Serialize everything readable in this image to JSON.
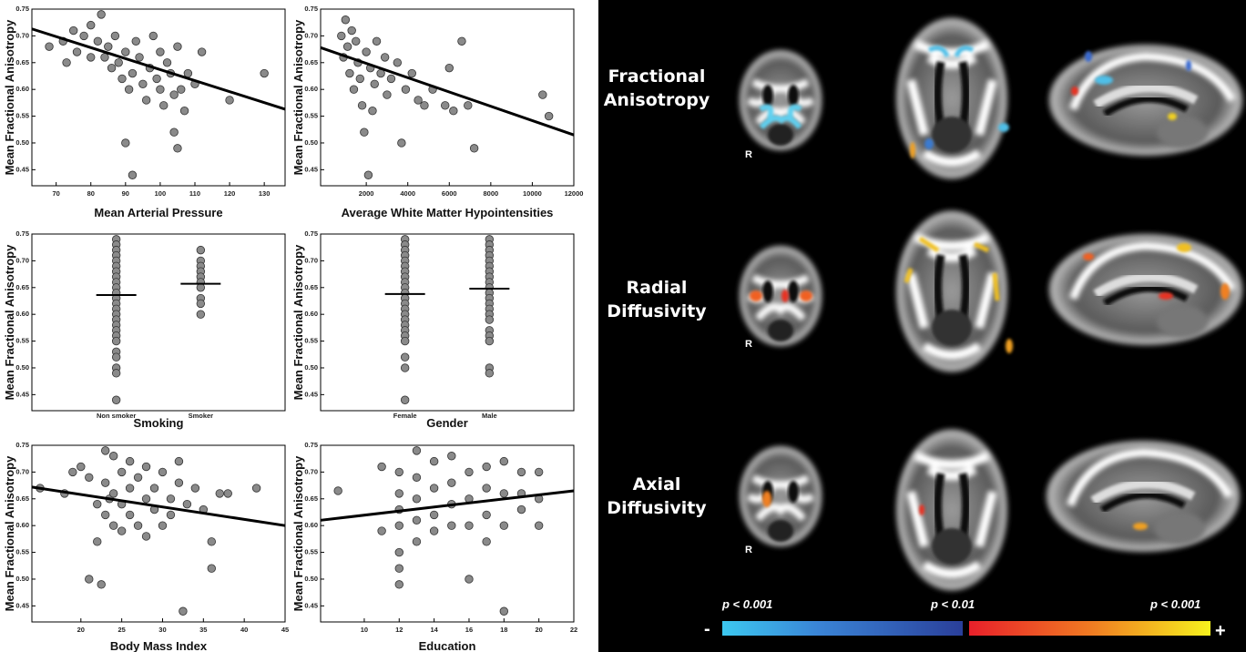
{
  "chart_data": [
    {
      "type": "scatter",
      "xlabel": "Mean Arterial Pressure",
      "ylabel": "Mean Fractional Anisotropy",
      "x": [
        68,
        72,
        73,
        75,
        76,
        78,
        80,
        80,
        82,
        83,
        84,
        85,
        86,
        87,
        88,
        89,
        90,
        90,
        91,
        92,
        92,
        93,
        94,
        95,
        96,
        97,
        98,
        99,
        100,
        100,
        101,
        102,
        103,
        104,
        104,
        105,
        105,
        106,
        107,
        108,
        110,
        112,
        120,
        130
      ],
      "y": [
        0.68,
        0.69,
        0.65,
        0.71,
        0.67,
        0.7,
        0.66,
        0.72,
        0.69,
        0.74,
        0.66,
        0.68,
        0.64,
        0.7,
        0.65,
        0.62,
        0.67,
        0.5,
        0.6,
        0.63,
        0.44,
        0.69,
        0.66,
        0.61,
        0.58,
        0.64,
        0.7,
        0.62,
        0.67,
        0.6,
        0.57,
        0.65,
        0.63,
        0.59,
        0.52,
        0.49,
        0.68,
        0.6,
        0.56,
        0.63,
        0.61,
        0.67,
        0.58,
        0.63
      ],
      "fit": {
        "x": [
          63,
          136
        ],
        "y": [
          0.713,
          0.563
        ]
      },
      "xlim": [
        63,
        136
      ],
      "xticks": [
        70,
        80,
        90,
        100,
        110,
        120,
        130
      ],
      "ylim": [
        0.42,
        0.75
      ],
      "yticks": [
        0.45,
        {
          "value": 0.5,
          "label": "0.50"
        },
        0.55,
        {
          "value": 0.6,
          "label": "0.60"
        },
        0.65,
        {
          "value": 0.7,
          "label": "0.70"
        },
        0.75
      ]
    },
    {
      "type": "scatter",
      "xlabel": "Average White Matter Hypointensities",
      "ylabel": "Mean Fractional Anisotropy",
      "x": [
        800,
        900,
        1000,
        1100,
        1200,
        1300,
        1400,
        1500,
        1600,
        1700,
        1800,
        1900,
        2000,
        2100,
        2200,
        2300,
        2400,
        2500,
        2700,
        2900,
        3000,
        3200,
        3500,
        3700,
        3900,
        4200,
        4500,
        4800,
        5200,
        5800,
        6000,
        6200,
        6600,
        6900,
        7200,
        10500,
        10800
      ],
      "y": [
        0.7,
        0.66,
        0.73,
        0.68,
        0.63,
        0.71,
        0.6,
        0.69,
        0.65,
        0.62,
        0.57,
        0.52,
        0.67,
        0.44,
        0.64,
        0.56,
        0.61,
        0.69,
        0.63,
        0.66,
        0.59,
        0.62,
        0.65,
        0.5,
        0.6,
        0.63,
        0.58,
        0.57,
        0.6,
        0.57,
        0.64,
        0.56,
        0.69,
        0.57,
        0.49,
        0.59,
        0.55
      ],
      "fit": {
        "x": [
          -200,
          12000
        ],
        "y": [
          0.678,
          0.515
        ]
      },
      "xlim": [
        -200,
        12000
      ],
      "xticks": [
        2000,
        4000,
        6000,
        8000,
        10000,
        12000
      ],
      "ylim": [
        0.42,
        0.75
      ],
      "yticks": [
        0.45,
        {
          "value": 0.5,
          "label": "0.50"
        },
        0.55,
        {
          "value": 0.6,
          "label": "0.60"
        },
        0.65,
        {
          "value": 0.7,
          "label": "0.70"
        },
        0.75
      ]
    },
    {
      "type": "strip",
      "xlabel": "Smoking",
      "ylabel": "Mean Fractional Anisotropy",
      "categories": [
        "Non smoker",
        "Smoker"
      ],
      "values": [
        [
          0.74,
          0.73,
          0.72,
          0.71,
          0.7,
          0.69,
          0.68,
          0.67,
          0.66,
          0.65,
          0.64,
          0.63,
          0.62,
          0.61,
          0.6,
          0.59,
          0.58,
          0.57,
          0.56,
          0.55,
          0.53,
          0.52,
          0.5,
          0.49,
          0.44
        ],
        [
          0.72,
          0.7,
          0.69,
          0.68,
          0.67,
          0.66,
          0.65,
          0.63,
          0.62,
          0.6
        ]
      ],
      "means": [
        0.636,
        0.657
      ],
      "ylim": [
        0.42,
        0.75
      ],
      "yticks": [
        0.45,
        {
          "value": 0.5,
          "label": "0.50"
        },
        0.55,
        {
          "value": 0.6,
          "label": "0.60"
        },
        0.65,
        {
          "value": 0.7,
          "label": "0.70"
        },
        0.75
      ]
    },
    {
      "type": "strip",
      "xlabel": "Gender",
      "ylabel": "Mean Fractional Anisotropy",
      "categories": [
        "Female",
        "Male"
      ],
      "values": [
        [
          0.74,
          0.73,
          0.72,
          0.71,
          0.7,
          0.69,
          0.68,
          0.67,
          0.66,
          0.65,
          0.64,
          0.63,
          0.62,
          0.61,
          0.6,
          0.59,
          0.58,
          0.57,
          0.56,
          0.55,
          0.52,
          0.5,
          0.44
        ],
        [
          0.74,
          0.73,
          0.72,
          0.71,
          0.7,
          0.69,
          0.68,
          0.67,
          0.66,
          0.65,
          0.64,
          0.63,
          0.62,
          0.61,
          0.6,
          0.59,
          0.57,
          0.56,
          0.55,
          0.5,
          0.49
        ]
      ],
      "means": [
        0.638,
        0.648
      ],
      "ylim": [
        0.42,
        0.75
      ],
      "yticks": [
        0.45,
        {
          "value": 0.5,
          "label": "0.50"
        },
        0.55,
        {
          "value": 0.6,
          "label": "0.60"
        },
        0.65,
        {
          "value": 0.7,
          "label": "0.70"
        },
        0.75
      ]
    },
    {
      "type": "scatter",
      "xlabel": "Body Mass Index",
      "ylabel": "Mean Fractional Anisotropy",
      "x": [
        15,
        18,
        19,
        20,
        21,
        21,
        22,
        22,
        22.5,
        23,
        23,
        23,
        23.5,
        24,
        24,
        24,
        25,
        25,
        25,
        26,
        26,
        26,
        27,
        27,
        28,
        28,
        28,
        29,
        29,
        30,
        30,
        31,
        31,
        32,
        32,
        32.5,
        33,
        34,
        35,
        36,
        36,
        37,
        38,
        41.5
      ],
      "y": [
        0.67,
        0.66,
        0.7,
        0.71,
        0.69,
        0.5,
        0.64,
        0.57,
        0.49,
        0.74,
        0.68,
        0.62,
        0.65,
        0.73,
        0.66,
        0.6,
        0.7,
        0.64,
        0.59,
        0.67,
        0.62,
        0.72,
        0.69,
        0.6,
        0.65,
        0.58,
        0.71,
        0.63,
        0.67,
        0.6,
        0.7,
        0.65,
        0.62,
        0.72,
        0.68,
        0.44,
        0.64,
        0.67,
        0.63,
        0.57,
        0.52,
        0.66,
        0.66,
        0.67
      ],
      "fit": {
        "x": [
          14,
          45
        ],
        "y": [
          0.672,
          0.6
        ]
      },
      "xlim": [
        14,
        45
      ],
      "xticks": [
        20,
        25,
        30,
        35,
        40,
        45
      ],
      "ylim": [
        0.42,
        0.75
      ],
      "yticks": [
        0.45,
        {
          "value": 0.5,
          "label": "0.50"
        },
        0.55,
        {
          "value": 0.6,
          "label": "0.60"
        },
        0.65,
        {
          "value": 0.7,
          "label": "0.70"
        },
        0.75
      ]
    },
    {
      "type": "scatter",
      "xlabel": "Education",
      "ylabel": "Mean Fractional Anisotropy",
      "x": [
        8.5,
        11,
        11,
        12,
        12,
        12,
        12,
        12,
        12,
        12,
        13,
        13,
        13,
        13,
        13,
        14,
        14,
        14,
        14,
        15,
        15,
        15,
        15,
        16,
        16,
        16,
        16,
        17,
        17,
        17,
        17,
        18,
        18,
        18,
        18,
        19,
        19,
        19,
        20,
        20,
        20
      ],
      "y": [
        0.665,
        0.59,
        0.71,
        0.49,
        0.52,
        0.55,
        0.6,
        0.63,
        0.66,
        0.7,
        0.57,
        0.61,
        0.65,
        0.69,
        0.74,
        0.59,
        0.62,
        0.67,
        0.72,
        0.6,
        0.64,
        0.68,
        0.73,
        0.5,
        0.6,
        0.65,
        0.7,
        0.57,
        0.62,
        0.67,
        0.71,
        0.44,
        0.6,
        0.66,
        0.72,
        0.63,
        0.66,
        0.7,
        0.6,
        0.65,
        0.7
      ],
      "fit": {
        "x": [
          7.5,
          22
        ],
        "y": [
          0.61,
          0.665
        ]
      },
      "xlim": [
        7.5,
        22
      ],
      "xticks": [
        10,
        12,
        14,
        16,
        18,
        20,
        22
      ],
      "ylim": [
        0.42,
        0.75
      ],
      "yticks": [
        0.45,
        {
          "value": 0.5,
          "label": "0.50"
        },
        0.55,
        {
          "value": 0.6,
          "label": "0.60"
        },
        0.65,
        {
          "value": 0.7,
          "label": "0.70"
        },
        0.75
      ]
    }
  ],
  "brain_panel": {
    "rows": [
      "Fractional Anisotropy",
      "Radial Diffusivity",
      "Axial Diffusivity"
    ],
    "side_label": "R",
    "colorbar": {
      "labels": [
        "p < 0.001",
        "p < 0.01",
        "p < 0.001"
      ],
      "minus": "-",
      "plus": "+"
    }
  }
}
